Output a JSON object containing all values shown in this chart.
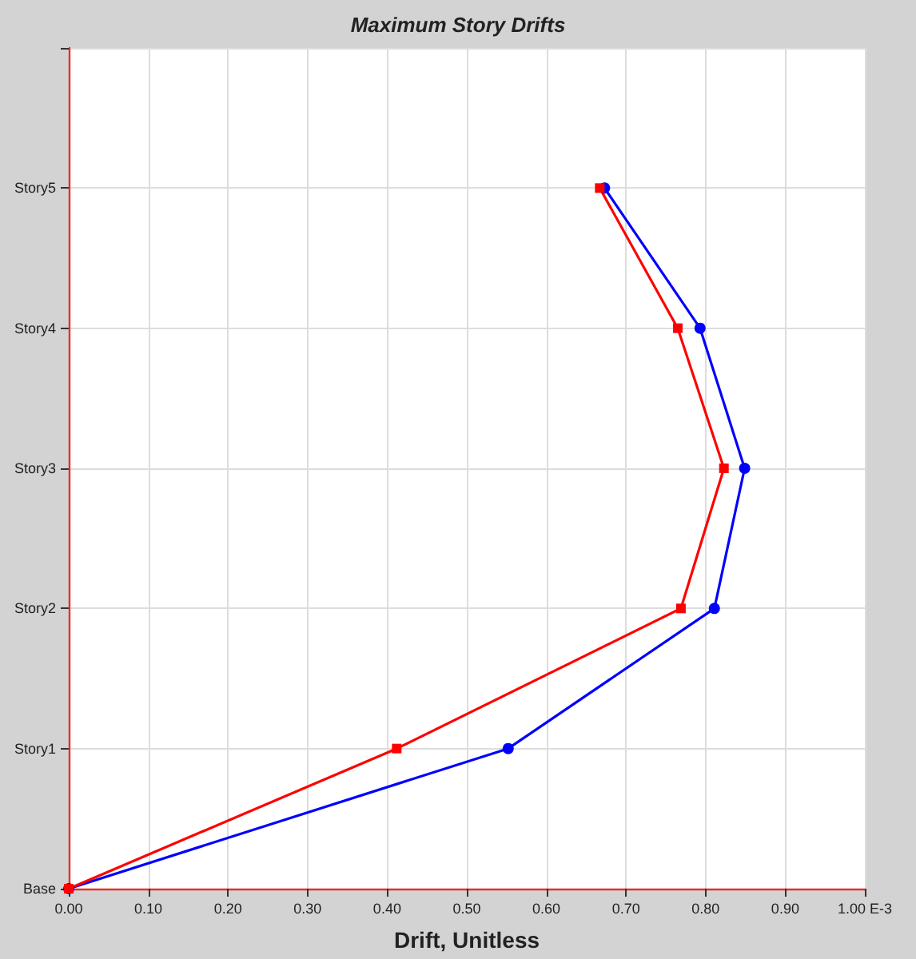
{
  "chart_data": {
    "type": "line",
    "title": "Maximum Story Drifts",
    "xlabel": "Drift, Unitless",
    "orientation": "horizontal",
    "categories": [
      null,
      "Story5",
      "Story4",
      "Story3",
      "Story2",
      "Story1",
      "Base"
    ],
    "xlim": [
      0,
      1
    ],
    "xticks": [
      {
        "value": 0,
        "label": "0.00"
      },
      {
        "value": 0.1,
        "label": "0.10"
      },
      {
        "value": 0.2,
        "label": "0.20"
      },
      {
        "value": 0.3,
        "label": "0.30"
      },
      {
        "value": 0.4,
        "label": "0.40"
      },
      {
        "value": 0.5,
        "label": "0.50"
      },
      {
        "value": 0.6,
        "label": "0.60"
      },
      {
        "value": 0.7,
        "label": "0.70"
      },
      {
        "value": 0.8,
        "label": "0.80"
      },
      {
        "value": 0.9,
        "label": "0.90"
      },
      {
        "value": 1,
        "label": "1.00 E-3"
      }
    ],
    "grid": true,
    "series": [
      {
        "color": "#0000ff",
        "marker": "circle",
        "values": [
          null,
          0.673,
          0.793,
          0.849,
          0.811,
          0.552,
          0
        ]
      },
      {
        "color": "#ff0000",
        "marker": "square",
        "values": [
          null,
          0.667,
          0.765,
          0.823,
          0.769,
          0.412,
          0
        ]
      }
    ]
  }
}
